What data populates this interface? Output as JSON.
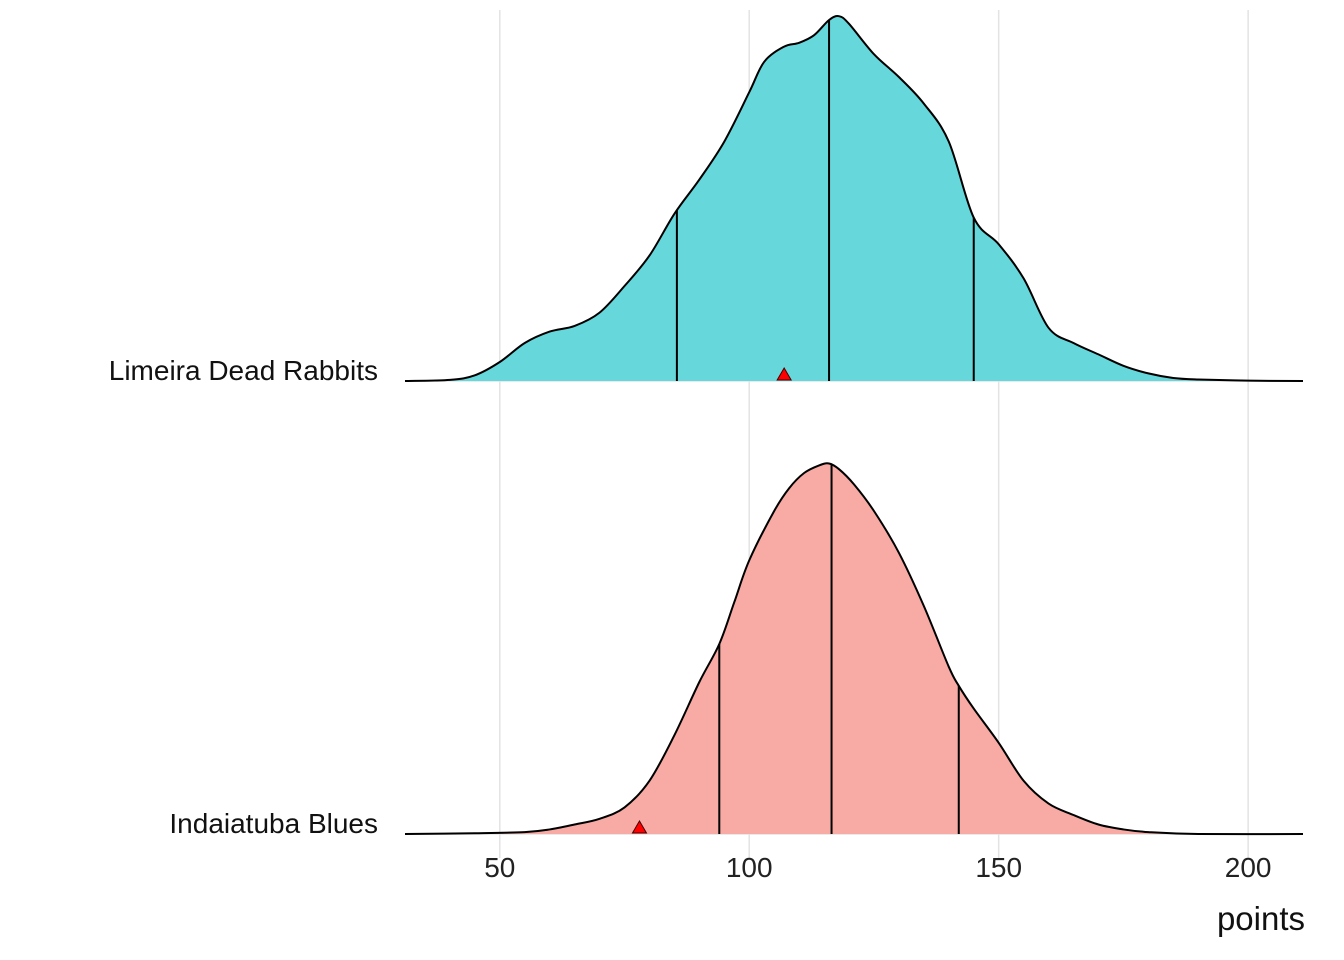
{
  "chart_data": {
    "type": "ridgeline-density",
    "xlabel": "points",
    "xlim": [
      31,
      211
    ],
    "x_ticks": [
      50,
      100,
      150,
      200
    ],
    "grid": {
      "vertical_major": true,
      "horizontal": false
    },
    "legend": "none",
    "series": [
      {
        "name": "Limeira Dead Rabbits",
        "fill": "#66d8dc",
        "quantiles": [
          85.5,
          116.0,
          145.0
        ],
        "marker": {
          "x": 107.0,
          "shape": "triangle",
          "color": "#ff0000"
        },
        "density": [
          [
            31,
            0.0
          ],
          [
            40,
            0.003
          ],
          [
            45,
            0.015
          ],
          [
            50,
            0.05
          ],
          [
            55,
            0.1
          ],
          [
            60,
            0.13
          ],
          [
            65,
            0.145
          ],
          [
            70,
            0.18
          ],
          [
            75,
            0.25
          ],
          [
            80,
            0.33
          ],
          [
            85,
            0.44
          ],
          [
            90,
            0.53
          ],
          [
            95,
            0.63
          ],
          [
            100,
            0.76
          ],
          [
            103,
            0.84
          ],
          [
            107,
            0.88
          ],
          [
            110,
            0.89
          ],
          [
            113,
            0.91
          ],
          [
            116,
            0.95
          ],
          [
            118,
            0.96
          ],
          [
            120,
            0.94
          ],
          [
            125,
            0.86
          ],
          [
            130,
            0.8
          ],
          [
            135,
            0.73
          ],
          [
            140,
            0.63
          ],
          [
            145,
            0.43
          ],
          [
            150,
            0.36
          ],
          [
            155,
            0.27
          ],
          [
            160,
            0.14
          ],
          [
            165,
            0.1
          ],
          [
            170,
            0.07
          ],
          [
            175,
            0.04
          ],
          [
            180,
            0.02
          ],
          [
            185,
            0.008
          ],
          [
            190,
            0.004
          ],
          [
            200,
            0.001
          ],
          [
            211,
            0.0
          ]
        ]
      },
      {
        "name": "Indaiatuba Blues",
        "fill": "#f8aaa5",
        "quantiles": [
          94.0,
          116.5,
          142.0
        ],
        "marker": {
          "x": 78.0,
          "shape": "triangle",
          "color": "#ff0000"
        },
        "density": [
          [
            31,
            0.0
          ],
          [
            45,
            0.002
          ],
          [
            55,
            0.005
          ],
          [
            60,
            0.012
          ],
          [
            65,
            0.025
          ],
          [
            70,
            0.04
          ],
          [
            75,
            0.07
          ],
          [
            80,
            0.14
          ],
          [
            85,
            0.26
          ],
          [
            90,
            0.4
          ],
          [
            94,
            0.5
          ],
          [
            97,
            0.61
          ],
          [
            100,
            0.72
          ],
          [
            105,
            0.85
          ],
          [
            108,
            0.91
          ],
          [
            111,
            0.95
          ],
          [
            114,
            0.97
          ],
          [
            116,
            0.975
          ],
          [
            118,
            0.96
          ],
          [
            121,
            0.92
          ],
          [
            125,
            0.85
          ],
          [
            130,
            0.74
          ],
          [
            135,
            0.6
          ],
          [
            140,
            0.44
          ],
          [
            142,
            0.39
          ],
          [
            145,
            0.33
          ],
          [
            150,
            0.24
          ],
          [
            155,
            0.14
          ],
          [
            160,
            0.08
          ],
          [
            165,
            0.05
          ],
          [
            170,
            0.025
          ],
          [
            175,
            0.012
          ],
          [
            180,
            0.005
          ],
          [
            190,
            0.0
          ],
          [
            211,
            0.0
          ]
        ]
      }
    ]
  }
}
